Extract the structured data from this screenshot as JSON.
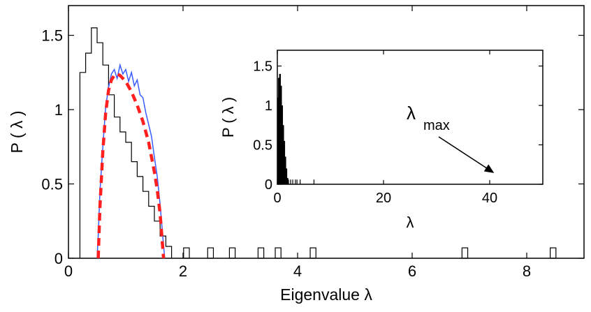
{
  "chart_data": [
    {
      "panel": "main",
      "type": "line",
      "xlabel": "Eigenvalue λ",
      "ylabel": "P ( λ )",
      "xlim": [
        0,
        9
      ],
      "ylim": [
        0,
        1.7
      ],
      "xticks": [
        0,
        2,
        4,
        6,
        8
      ],
      "yticks": [
        0,
        0.5,
        1,
        1.5
      ],
      "ytick_labels": [
        "0",
        "0.5",
        "1",
        "1.5"
      ],
      "grid": false,
      "series": [
        {
          "style": "histogram-step",
          "color": "#000000",
          "bin_width": 0.1,
          "points": [
            [
              0.2,
              0
            ],
            [
              0.2,
              1.25
            ],
            [
              0.3,
              1.25
            ],
            [
              0.3,
              1.38
            ],
            [
              0.4,
              1.38
            ],
            [
              0.4,
              1.55
            ],
            [
              0.5,
              1.55
            ],
            [
              0.5,
              1.45
            ],
            [
              0.6,
              1.45
            ],
            [
              0.6,
              1.3
            ],
            [
              0.7,
              1.3
            ],
            [
              0.7,
              1.1
            ],
            [
              0.8,
              1.1
            ],
            [
              0.8,
              0.95
            ],
            [
              0.9,
              0.95
            ],
            [
              0.9,
              0.85
            ],
            [
              1.0,
              0.85
            ],
            [
              1.0,
              0.78
            ],
            [
              1.1,
              0.78
            ],
            [
              1.1,
              0.65
            ],
            [
              1.2,
              0.65
            ],
            [
              1.2,
              0.55
            ],
            [
              1.3,
              0.55
            ],
            [
              1.3,
              0.45
            ],
            [
              1.4,
              0.45
            ],
            [
              1.4,
              0.35
            ],
            [
              1.5,
              0.35
            ],
            [
              1.5,
              0.25
            ],
            [
              1.6,
              0.25
            ],
            [
              1.6,
              0.15
            ],
            [
              1.7,
              0.15
            ],
            [
              1.7,
              0.08
            ],
            [
              1.8,
              0.08
            ],
            [
              1.8,
              0
            ]
          ],
          "outliers": [
            2.06,
            2.48,
            2.86,
            3.36,
            3.66,
            4.27,
            6.92,
            8.46
          ],
          "outlier_height": 0.07
        },
        {
          "style": "line",
          "color": "#3a5bff",
          "points": [
            [
              0.5,
              0
            ],
            [
              0.52,
              0.15
            ],
            [
              0.55,
              0.45
            ],
            [
              0.6,
              0.75
            ],
            [
              0.65,
              1.02
            ],
            [
              0.7,
              1.15
            ],
            [
              0.75,
              1.24
            ],
            [
              0.8,
              1.27
            ],
            [
              0.85,
              1.21
            ],
            [
              0.9,
              1.3
            ],
            [
              0.95,
              1.24
            ],
            [
              1.0,
              1.27
            ],
            [
              1.05,
              1.19
            ],
            [
              1.1,
              1.25
            ],
            [
              1.15,
              1.16
            ],
            [
              1.2,
              1.2
            ],
            [
              1.25,
              1.1
            ],
            [
              1.3,
              1.08
            ],
            [
              1.35,
              0.98
            ],
            [
              1.4,
              0.9
            ],
            [
              1.45,
              0.82
            ],
            [
              1.5,
              0.68
            ],
            [
              1.55,
              0.55
            ],
            [
              1.6,
              0.36
            ],
            [
              1.65,
              0.13
            ],
            [
              1.68,
              0
            ]
          ]
        },
        {
          "style": "dashed",
          "color": "#ff1f1f",
          "points": [
            [
              0.52,
              0
            ],
            [
              0.55,
              0.35
            ],
            [
              0.6,
              0.72
            ],
            [
              0.65,
              0.98
            ],
            [
              0.7,
              1.13
            ],
            [
              0.75,
              1.2
            ],
            [
              0.8,
              1.23
            ],
            [
              0.85,
              1.24
            ],
            [
              0.9,
              1.23
            ],
            [
              1.0,
              1.19
            ],
            [
              1.1,
              1.12
            ],
            [
              1.2,
              1.03
            ],
            [
              1.3,
              0.92
            ],
            [
              1.4,
              0.78
            ],
            [
              1.5,
              0.58
            ],
            [
              1.55,
              0.46
            ],
            [
              1.6,
              0.3
            ],
            [
              1.65,
              0.05
            ],
            [
              1.66,
              0
            ]
          ]
        }
      ]
    },
    {
      "panel": "inset",
      "type": "bar",
      "xlabel": "λ",
      "ylabel": "P ( λ )",
      "xlim": [
        0,
        50
      ],
      "ylim": [
        0,
        1.7
      ],
      "xticks": [
        0,
        20,
        40
      ],
      "yticks": [
        0,
        0.5,
        1,
        1.5
      ],
      "ytick_labels": [
        "0",
        "0.5",
        "1",
        "1.5"
      ],
      "bars": [
        [
          0.1,
          1.1
        ],
        [
          0.3,
          1.35
        ],
        [
          0.5,
          1.4
        ],
        [
          0.7,
          1.25
        ],
        [
          0.9,
          1.0
        ],
        [
          1.1,
          0.75
        ],
        [
          1.3,
          0.55
        ],
        [
          1.5,
          0.35
        ],
        [
          1.7,
          0.2
        ],
        [
          1.9,
          0.08
        ]
      ],
      "outliers": [
        2.1,
        2.5,
        2.9,
        3.4,
        3.7,
        4.3,
        6.9
      ],
      "outlier_height": 0.06,
      "annotation": {
        "text_main": "λ",
        "text_sub": "max",
        "arrow_to": [
          42,
          0.12
        ]
      }
    }
  ]
}
